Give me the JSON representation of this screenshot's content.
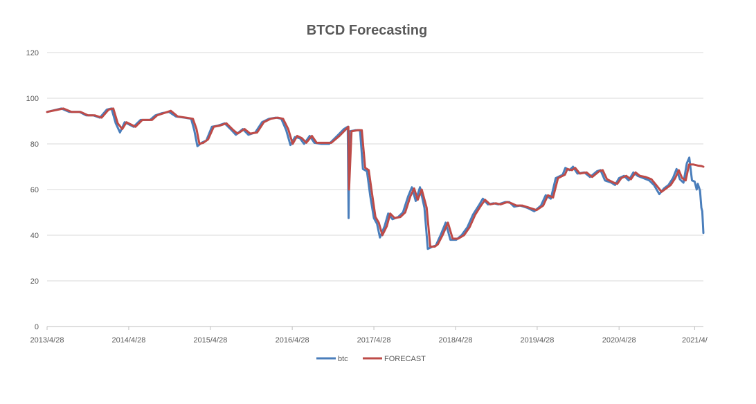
{
  "chart_data": {
    "type": "line",
    "title": "BTCD Forecasting",
    "xlabel": "",
    "ylabel": "",
    "ylim": [
      0,
      120
    ],
    "yticks": [
      0,
      20,
      40,
      60,
      80,
      100,
      120
    ],
    "xlim": [
      "2013/4/28",
      "2021/5/10"
    ],
    "xticks": [
      "2013/4/28",
      "2014/4/28",
      "2015/4/28",
      "2016/4/28",
      "2017/4/28",
      "2018/4/28",
      "2019/4/28",
      "2020/4/28",
      "2021/4/"
    ],
    "grid": true,
    "legend": "bottom-center",
    "series": [
      {
        "name": "btc",
        "color": "#4a7ebb",
        "points": [
          [
            "2013/4/28",
            94
          ],
          [
            "2013/7/1",
            95.5
          ],
          [
            "2013/8/5",
            94
          ],
          [
            "2013/9/20",
            94
          ],
          [
            "2013/10/20",
            92.5
          ],
          [
            "2013/11/20",
            92.5
          ],
          [
            "2013/12/20",
            91.5
          ],
          [
            "2014/1/20",
            95
          ],
          [
            "2014/2/10",
            95.5
          ],
          [
            "2014/3/1",
            89
          ],
          [
            "2014/3/20",
            85
          ],
          [
            "2014/4/10",
            89.5
          ],
          [
            "2014/5/20",
            87.5
          ],
          [
            "2014/6/20",
            90.5
          ],
          [
            "2014/8/1",
            90.5
          ],
          [
            "2014/8/25",
            92.5
          ],
          [
            "2014/9/25",
            93.5
          ],
          [
            "2014/10/25",
            94
          ],
          [
            "2014/11/25",
            92
          ],
          [
            "2015/1/1",
            91.5
          ],
          [
            "2015/2/1",
            91
          ],
          [
            "2015/2/15",
            86
          ],
          [
            "2015/3/1",
            79
          ],
          [
            "2015/3/20",
            80.5
          ],
          [
            "2015/4/10",
            81.5
          ],
          [
            "2015/5/5",
            87.5
          ],
          [
            "2015/6/1",
            88
          ],
          [
            "2015/7/1",
            89
          ],
          [
            "2015/8/1",
            86
          ],
          [
            "2015/8/20",
            84
          ],
          [
            "2015/9/20",
            86.5
          ],
          [
            "2015/10/15",
            84
          ],
          [
            "2015/11/15",
            85
          ],
          [
            "2015/12/15",
            89.5
          ],
          [
            "2016/1/15",
            91
          ],
          [
            "2016/2/15",
            91.5
          ],
          [
            "2016/3/10",
            91
          ],
          [
            "2016/4/1",
            86
          ],
          [
            "2016/4/20",
            79.5
          ],
          [
            "2016/5/10",
            83
          ],
          [
            "2016/6/1",
            82.5
          ],
          [
            "2016/6/20",
            80
          ],
          [
            "2016/7/15",
            83.5
          ],
          [
            "2016/8/5",
            80.5
          ],
          [
            "2016/9/5",
            80
          ],
          [
            "2016/10/10",
            80
          ],
          [
            "2016/11/15",
            83.5
          ],
          [
            "2016/12/15",
            86.5
          ],
          [
            "2017/1/1",
            87.5
          ],
          [
            "2017/1/5",
            47.5
          ],
          [
            "2017/1/9",
            85.5
          ],
          [
            "2017/2/5",
            86
          ],
          [
            "2017/2/25",
            86
          ],
          [
            "2017/3/10",
            69
          ],
          [
            "2017/3/28",
            68
          ],
          [
            "2017/4/12",
            57
          ],
          [
            "2017/4/28",
            47.5
          ],
          [
            "2017/5/12",
            45
          ],
          [
            "2017/5/25",
            39
          ],
          [
            "2017/6/15",
            44
          ],
          [
            "2017/7/1",
            49.5
          ],
          [
            "2017/7/20",
            47
          ],
          [
            "2017/8/15",
            48
          ],
          [
            "2017/9/5",
            50
          ],
          [
            "2017/9/28",
            57
          ],
          [
            "2017/10/15",
            61
          ],
          [
            "2017/11/1",
            55
          ],
          [
            "2017/11/20",
            61
          ],
          [
            "2017/12/10",
            52
          ],
          [
            "2017/12/25",
            34
          ],
          [
            "2018/1/15",
            35
          ],
          [
            "2018/1/30",
            35.5
          ],
          [
            "2018/2/20",
            40
          ],
          [
            "2018/3/15",
            45.5
          ],
          [
            "2018/4/5",
            38
          ],
          [
            "2018/5/1",
            38
          ],
          [
            "2018/5/25",
            40
          ],
          [
            "2018/6/20",
            43.5
          ],
          [
            "2018/7/15",
            49
          ],
          [
            "2018/8/10",
            53
          ],
          [
            "2018/8/28",
            56
          ],
          [
            "2018/9/20",
            53.5
          ],
          [
            "2018/10/15",
            54
          ],
          [
            "2018/11/5",
            53.5
          ],
          [
            "2018/12/5",
            54.5
          ],
          [
            "2018/12/25",
            54.5
          ],
          [
            "2019/1/15",
            52.5
          ],
          [
            "2019/2/10",
            53
          ],
          [
            "2019/3/15",
            52
          ],
          [
            "2019/4/15",
            50.5
          ],
          [
            "2019/5/15",
            53
          ],
          [
            "2019/6/5",
            57.5
          ],
          [
            "2019/6/28",
            56
          ],
          [
            "2019/7/20",
            65
          ],
          [
            "2019/8/20",
            66.5
          ],
          [
            "2019/9/1",
            69.5
          ],
          [
            "2019/9/20",
            68.5
          ],
          [
            "2019/10/5",
            70
          ],
          [
            "2019/10/25",
            67
          ],
          [
            "2019/11/25",
            67.5
          ],
          [
            "2019/12/20",
            65.5
          ],
          [
            "2020/1/20",
            68
          ],
          [
            "2020/2/5",
            68.5
          ],
          [
            "2020/2/25",
            64
          ],
          [
            "2020/3/25",
            63
          ],
          [
            "2020/4/10",
            62
          ],
          [
            "2020/4/28",
            65
          ],
          [
            "2020/5/20",
            66
          ],
          [
            "2020/6/10",
            64
          ],
          [
            "2020/7/1",
            67.5
          ],
          [
            "2020/7/20",
            66
          ],
          [
            "2020/8/15",
            65
          ],
          [
            "2020/9/10",
            64
          ],
          [
            "2020/10/1",
            62
          ],
          [
            "2020/10/25",
            58
          ],
          [
            "2020/11/15",
            60.5
          ],
          [
            "2020/12/5",
            62
          ],
          [
            "2020/12/25",
            65
          ],
          [
            "2021/1/10",
            69
          ],
          [
            "2021/1/25",
            64.5
          ],
          [
            "2021/2/10",
            63
          ],
          [
            "2021/2/25",
            71.5
          ],
          [
            "2021/3/8",
            74
          ],
          [
            "2021/3/20",
            64
          ],
          [
            "2021/4/1",
            63.5
          ],
          [
            "2021/4/10",
            60
          ],
          [
            "2021/4/15",
            62.5
          ],
          [
            "2021/4/25",
            59.5
          ],
          [
            "2021/5/1",
            52
          ],
          [
            "2021/5/5",
            50.5
          ],
          [
            "2021/5/10",
            41
          ]
        ]
      },
      {
        "name": "FORECAST",
        "color": "#be4b48",
        "points": [
          [
            "2013/4/28",
            94
          ],
          [
            "2013/7/10",
            95.5
          ],
          [
            "2013/8/15",
            94
          ],
          [
            "2013/9/25",
            94
          ],
          [
            "2013/10/28",
            92.5
          ],
          [
            "2013/11/28",
            92.5
          ],
          [
            "2013/12/28",
            91.5
          ],
          [
            "2014/1/28",
            95
          ],
          [
            "2014/2/18",
            95.5
          ],
          [
            "2014/3/10",
            89
          ],
          [
            "2014/3/30",
            86.5
          ],
          [
            "2014/4/18",
            89.5
          ],
          [
            "2014/5/28",
            87.5
          ],
          [
            "2014/6/28",
            90.5
          ],
          [
            "2014/8/10",
            90.5
          ],
          [
            "2014/9/2",
            92.5
          ],
          [
            "2014/10/3",
            93.5
          ],
          [
            "2014/11/2",
            94.5
          ],
          [
            "2014/12/3",
            92
          ],
          [
            "2015/1/9",
            91.5
          ],
          [
            "2015/2/9",
            91
          ],
          [
            "2015/2/25",
            86.5
          ],
          [
            "2015/3/10",
            80
          ],
          [
            "2015/3/28",
            80.5
          ],
          [
            "2015/4/18",
            82
          ],
          [
            "2015/5/13",
            87.5
          ],
          [
            "2015/6/9",
            88
          ],
          [
            "2015/7/9",
            89
          ],
          [
            "2015/8/9",
            86
          ],
          [
            "2015/8/28",
            84.5
          ],
          [
            "2015/9/28",
            86.5
          ],
          [
            "2015/10/23",
            84.5
          ],
          [
            "2015/11/23",
            85
          ],
          [
            "2015/12/23",
            89.5
          ],
          [
            "2016/1/23",
            91
          ],
          [
            "2016/2/23",
            91.5
          ],
          [
            "2016/3/18",
            91
          ],
          [
            "2016/4/10",
            86.5
          ],
          [
            "2016/4/30",
            80
          ],
          [
            "2016/5/20",
            83.5
          ],
          [
            "2016/6/10",
            82.5
          ],
          [
            "2016/6/30",
            80.5
          ],
          [
            "2016/7/25",
            83.5
          ],
          [
            "2016/8/15",
            80.5
          ],
          [
            "2016/9/15",
            80.5
          ],
          [
            "2016/10/20",
            80.5
          ],
          [
            "2016/11/25",
            83.5
          ],
          [
            "2016/12/25",
            86.5
          ],
          [
            "2017/1/4",
            87.5
          ],
          [
            "2017/1/7",
            60
          ],
          [
            "2017/1/18",
            85.5
          ],
          [
            "2017/2/15",
            86
          ],
          [
            "2017/3/5",
            86
          ],
          [
            "2017/3/20",
            69.5
          ],
          [
            "2017/4/5",
            68.5
          ],
          [
            "2017/4/20",
            58
          ],
          [
            "2017/5/5",
            48
          ],
          [
            "2017/5/20",
            45.5
          ],
          [
            "2017/6/5",
            40
          ],
          [
            "2017/6/25",
            44
          ],
          [
            "2017/7/10",
            49.5
          ],
          [
            "2017/7/30",
            47.5
          ],
          [
            "2017/8/25",
            48
          ],
          [
            "2017/9/15",
            50
          ],
          [
            "2017/10/8",
            57
          ],
          [
            "2017/10/25",
            60.5
          ],
          [
            "2017/11/10",
            55.5
          ],
          [
            "2017/11/28",
            60
          ],
          [
            "2017/12/20",
            52
          ],
          [
            "2018/1/5",
            35
          ],
          [
            "2018/1/25",
            35
          ],
          [
            "2018/2/8",
            36
          ],
          [
            "2018/3/1",
            40
          ],
          [
            "2018/3/25",
            45.5
          ],
          [
            "2018/4/15",
            38.5
          ],
          [
            "2018/5/10",
            38.5
          ],
          [
            "2018/6/5",
            40
          ],
          [
            "2018/6/30",
            43.5
          ],
          [
            "2018/7/25",
            49
          ],
          [
            "2018/8/20",
            53
          ],
          [
            "2018/9/7",
            55.5
          ],
          [
            "2018/9/30",
            53.5
          ],
          [
            "2018/10/25",
            54
          ],
          [
            "2018/11/15",
            53.5
          ],
          [
            "2018/12/15",
            54.5
          ],
          [
            "2019/1/3",
            54
          ],
          [
            "2019/1/25",
            53
          ],
          [
            "2019/2/20",
            53
          ],
          [
            "2019/3/25",
            52
          ],
          [
            "2019/4/25",
            51
          ],
          [
            "2019/5/25",
            53
          ],
          [
            "2019/6/15",
            57.5
          ],
          [
            "2019/7/8",
            56.5
          ],
          [
            "2019/7/30",
            65
          ],
          [
            "2019/8/30",
            66.5
          ],
          [
            "2019/9/10",
            69
          ],
          [
            "2019/9/30",
            68.5
          ],
          [
            "2019/10/15",
            69.5
          ],
          [
            "2019/11/5",
            67
          ],
          [
            "2019/12/5",
            67.5
          ],
          [
            "2019/12/30",
            65.5
          ],
          [
            "2020/1/30",
            68
          ],
          [
            "2020/2/15",
            68.5
          ],
          [
            "2020/3/5",
            64.5
          ],
          [
            "2020/4/5",
            63
          ],
          [
            "2020/4/20",
            62.5
          ],
          [
            "2020/5/8",
            65
          ],
          [
            "2020/5/30",
            66
          ],
          [
            "2020/6/20",
            64.5
          ],
          [
            "2020/7/11",
            67.5
          ],
          [
            "2020/7/30",
            66
          ],
          [
            "2020/8/25",
            65.5
          ],
          [
            "2020/9/20",
            64.5
          ],
          [
            "2020/10/11",
            62
          ],
          [
            "2020/11/4",
            59
          ],
          [
            "2020/11/25",
            60.5
          ],
          [
            "2020/12/15",
            62
          ],
          [
            "2021/1/4",
            65
          ],
          [
            "2021/1/20",
            68.5
          ],
          [
            "2021/2/4",
            65
          ],
          [
            "2021/2/20",
            64
          ],
          [
            "2021/3/7",
            71
          ],
          [
            "2021/3/25",
            71
          ],
          [
            "2021/4/15",
            70.5
          ],
          [
            "2021/5/1",
            70.3
          ],
          [
            "2021/5/10",
            70
          ]
        ]
      }
    ]
  }
}
